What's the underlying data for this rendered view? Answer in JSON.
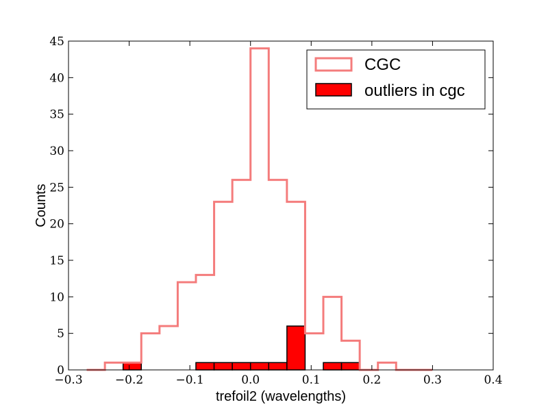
{
  "chart_data": {
    "type": "histogram",
    "xlabel": "trefoil2 (wavelengths)",
    "ylabel": "Counts",
    "xlim": [
      -0.3,
      0.4
    ],
    "ylim": [
      0,
      45
    ],
    "xticks": [
      -0.3,
      -0.2,
      -0.1,
      0.0,
      0.1,
      0.2,
      0.3,
      0.4
    ],
    "xtick_labels": [
      "−0.3",
      "−0.2",
      "−0.1",
      "0.0",
      "0.1",
      "0.2",
      "0.3",
      "0.4"
    ],
    "yticks": [
      0,
      5,
      10,
      15,
      20,
      25,
      30,
      35,
      40,
      45
    ],
    "ytick_labels": [
      "0",
      "5",
      "10",
      "15",
      "20",
      "25",
      "30",
      "35",
      "40",
      "45"
    ],
    "bin_edges": [
      -0.27,
      -0.24,
      -0.21,
      -0.18,
      -0.15,
      -0.12,
      -0.09,
      -0.06,
      -0.03,
      0.0,
      0.03,
      0.06,
      0.09,
      0.12,
      0.15,
      0.18,
      0.21,
      0.24,
      0.27,
      0.3
    ],
    "series": [
      {
        "name": "CGC",
        "style": "step",
        "color": "#f47c7c",
        "counts": [
          0,
          1,
          1,
          5,
          6,
          12,
          13,
          23,
          26,
          44,
          26,
          23,
          5,
          10,
          4,
          0,
          1,
          0,
          0
        ]
      },
      {
        "name": "outliers in cgc",
        "style": "filled",
        "color": "#ff0000",
        "edgecolor": "#000000",
        "counts": [
          0,
          0,
          1,
          0,
          0,
          0,
          1,
          1,
          1,
          1,
          1,
          6,
          0,
          1,
          1,
          0,
          0,
          0,
          0
        ]
      }
    ],
    "legend": {
      "position": "top-right",
      "entries": [
        "CGC",
        "outliers in cgc"
      ]
    },
    "grid": false
  }
}
